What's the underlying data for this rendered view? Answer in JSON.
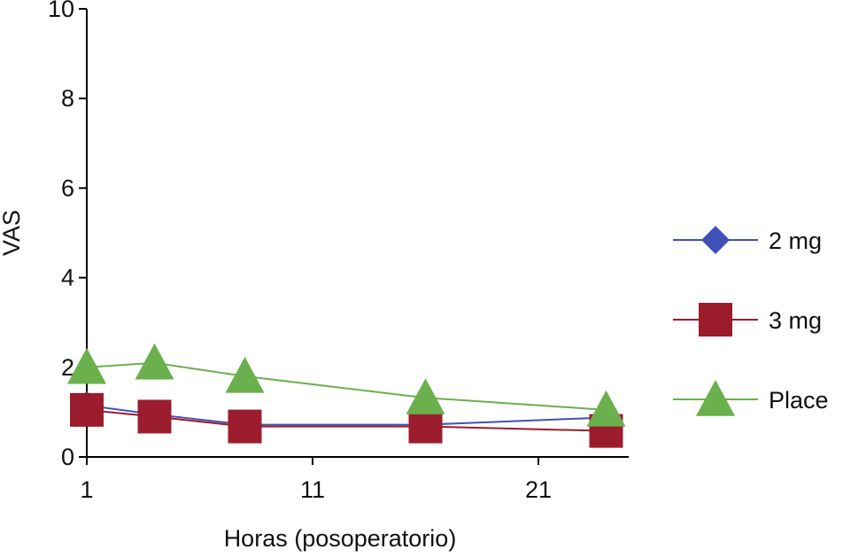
{
  "chart_data": {
    "type": "line",
    "title": "",
    "xlabel": "Horas (posoperatorio)",
    "ylabel": "VAS",
    "xlim": [
      1,
      25
    ],
    "ylim": [
      0,
      10
    ],
    "x_ticks": [
      "1",
      "11",
      "21"
    ],
    "y_ticks": [
      "0",
      "2",
      "4",
      "6",
      "8",
      "10"
    ],
    "x": [
      1,
      4,
      8,
      16,
      24
    ],
    "grid": false,
    "legend_position": "right",
    "series": [
      {
        "name": "2 mg",
        "values": [
          1.15,
          0.95,
          0.72,
          0.72,
          0.88
        ],
        "color": "#3f51b5",
        "marker": "diamond"
      },
      {
        "name": "3 mg",
        "values": [
          1.05,
          0.9,
          0.68,
          0.68,
          0.58
        ],
        "color": "#9b1c2c",
        "marker": "square"
      },
      {
        "name": "Place",
        "values": [
          2.0,
          2.1,
          1.8,
          1.32,
          1.05
        ],
        "color": "#6ab04c",
        "marker": "triangle"
      }
    ]
  }
}
